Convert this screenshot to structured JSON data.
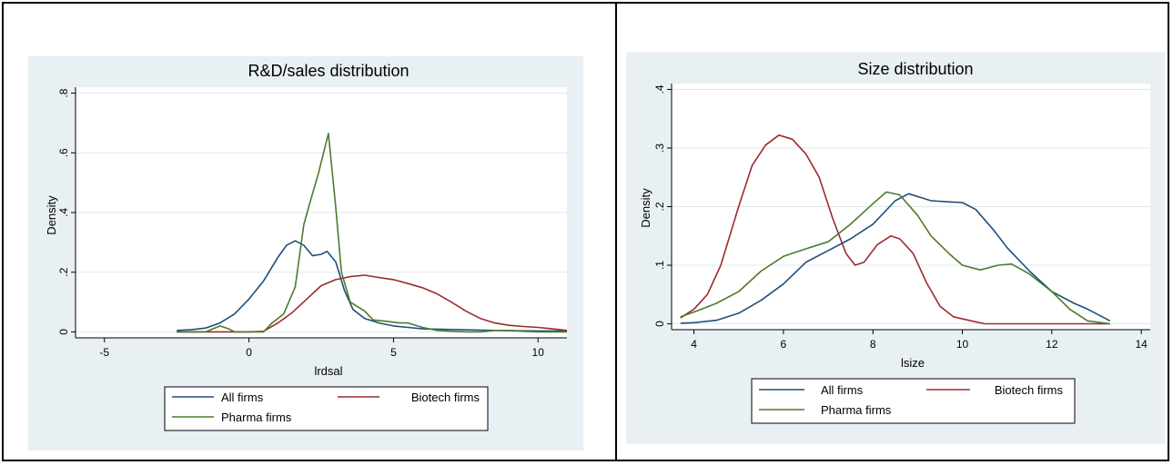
{
  "colors": {
    "all_firms": "#1c4f7c",
    "biotech_firms": "#9e2a2b",
    "pharma_firms": "#4e7a2c",
    "panel_bg": "#e8f0f3",
    "plot_bg": "#ffffff",
    "grid": "#dfe8ec"
  },
  "chart_data": [
    {
      "type": "line",
      "title": "R&D/sales distribution",
      "xlabel": "lrdsal",
      "ylabel": "Density",
      "xlim": [
        -6,
        11
      ],
      "ylim": [
        -0.02,
        0.82
      ],
      "xticks": [
        -5,
        0,
        5,
        10
      ],
      "xtick_labels": [
        "-5",
        "0",
        "5",
        "10"
      ],
      "yticks": [
        0,
        0.2,
        0.4,
        0.6,
        0.8
      ],
      "ytick_labels": [
        "0",
        ".2",
        ".4",
        ".6",
        ".8"
      ],
      "grid": true,
      "legend_position": "bottom",
      "series": [
        {
          "name": "All firms",
          "points": [
            [
              -2.5,
              0.005
            ],
            [
              -2,
              0.007
            ],
            [
              -1.5,
              0.013
            ],
            [
              -1,
              0.03
            ],
            [
              -0.5,
              0.06
            ],
            [
              0,
              0.11
            ],
            [
              0.5,
              0.17
            ],
            [
              1,
              0.25
            ],
            [
              1.3,
              0.29
            ],
            [
              1.6,
              0.305
            ],
            [
              1.9,
              0.29
            ],
            [
              2.2,
              0.255
            ],
            [
              2.5,
              0.26
            ],
            [
              2.7,
              0.27
            ],
            [
              3,
              0.235
            ],
            [
              3.3,
              0.14
            ],
            [
              3.6,
              0.075
            ],
            [
              4,
              0.045
            ],
            [
              4.5,
              0.03
            ],
            [
              5,
              0.02
            ],
            [
              5.5,
              0.015
            ],
            [
              6,
              0.01
            ],
            [
              7,
              0.008
            ],
            [
              8,
              0.006
            ],
            [
              9,
              0.004
            ],
            [
              10,
              0.003
            ],
            [
              11,
              0.003
            ]
          ]
        },
        {
          "name": "Biotech firms",
          "points": [
            [
              -2.5,
              0
            ],
            [
              0,
              0
            ],
            [
              0.5,
              0.002
            ],
            [
              1,
              0.03
            ],
            [
              1.5,
              0.065
            ],
            [
              2,
              0.11
            ],
            [
              2.5,
              0.155
            ],
            [
              3,
              0.175
            ],
            [
              3.5,
              0.185
            ],
            [
              4,
              0.19
            ],
            [
              4.5,
              0.182
            ],
            [
              5,
              0.175
            ],
            [
              5.5,
              0.162
            ],
            [
              6,
              0.148
            ],
            [
              6.5,
              0.128
            ],
            [
              7,
              0.1
            ],
            [
              7.5,
              0.07
            ],
            [
              8,
              0.045
            ],
            [
              8.5,
              0.03
            ],
            [
              9,
              0.022
            ],
            [
              9.5,
              0.018
            ],
            [
              10,
              0.015
            ],
            [
              10.5,
              0.01
            ],
            [
              11,
              0.005
            ]
          ]
        },
        {
          "name": "Pharma firms",
          "points": [
            [
              -2.5,
              0
            ],
            [
              -1.5,
              0
            ],
            [
              -1,
              0.02
            ],
            [
              -0.7,
              0.01
            ],
            [
              -0.5,
              0
            ],
            [
              0,
              0
            ],
            [
              0.5,
              0
            ],
            [
              0.8,
              0.03
            ],
            [
              1.2,
              0.06
            ],
            [
              1.6,
              0.15
            ],
            [
              1.9,
              0.36
            ],
            [
              2.1,
              0.43
            ],
            [
              2.4,
              0.53
            ],
            [
              2.75,
              0.665
            ],
            [
              3,
              0.42
            ],
            [
              3.2,
              0.2
            ],
            [
              3.5,
              0.1
            ],
            [
              4,
              0.07
            ],
            [
              4.3,
              0.04
            ],
            [
              4.8,
              0.035
            ],
            [
              5.2,
              0.03
            ],
            [
              5.5,
              0.03
            ],
            [
              6,
              0.015
            ],
            [
              6.5,
              0.005
            ],
            [
              7,
              0.002
            ],
            [
              7.5,
              0
            ],
            [
              8,
              0
            ],
            [
              8.5,
              0.005
            ],
            [
              9,
              0.005
            ],
            [
              9.5,
              0.002
            ],
            [
              10,
              0
            ],
            [
              11,
              0
            ]
          ]
        }
      ]
    },
    {
      "type": "line",
      "title": "Size distribution",
      "xlabel": "lsize",
      "ylabel": "Density",
      "xlim": [
        3.5,
        14.2
      ],
      "ylim": [
        -0.01,
        0.41
      ],
      "xticks": [
        4,
        6,
        8,
        10,
        12,
        14
      ],
      "xtick_labels": [
        "4",
        "6",
        "8",
        "10",
        "12",
        "14"
      ],
      "yticks": [
        0,
        0.1,
        0.2,
        0.3,
        0.4
      ],
      "ytick_labels": [
        "0",
        ".1",
        ".2",
        ".3",
        ".4"
      ],
      "grid": true,
      "legend_position": "bottom",
      "series": [
        {
          "name": "All firms",
          "points": [
            [
              3.7,
              0.001
            ],
            [
              4,
              0.002
            ],
            [
              4.5,
              0.006
            ],
            [
              5,
              0.018
            ],
            [
              5.5,
              0.04
            ],
            [
              6,
              0.068
            ],
            [
              6.5,
              0.105
            ],
            [
              7,
              0.125
            ],
            [
              7.5,
              0.145
            ],
            [
              8,
              0.17
            ],
            [
              8.5,
              0.21
            ],
            [
              8.8,
              0.222
            ],
            [
              9.3,
              0.21
            ],
            [
              9.7,
              0.208
            ],
            [
              10,
              0.207
            ],
            [
              10.3,
              0.195
            ],
            [
              10.7,
              0.16
            ],
            [
              11,
              0.13
            ],
            [
              11.5,
              0.09
            ],
            [
              12,
              0.055
            ],
            [
              12.5,
              0.035
            ],
            [
              12.8,
              0.025
            ],
            [
              13.3,
              0.005
            ]
          ]
        },
        {
          "name": "Biotech firms",
          "points": [
            [
              3.7,
              0.01
            ],
            [
              4,
              0.025
            ],
            [
              4.3,
              0.05
            ],
            [
              4.6,
              0.1
            ],
            [
              5,
              0.2
            ],
            [
              5.3,
              0.27
            ],
            [
              5.6,
              0.305
            ],
            [
              5.9,
              0.322
            ],
            [
              6.2,
              0.315
            ],
            [
              6.5,
              0.29
            ],
            [
              6.8,
              0.25
            ],
            [
              7.1,
              0.18
            ],
            [
              7.4,
              0.12
            ],
            [
              7.6,
              0.1
            ],
            [
              7.8,
              0.105
            ],
            [
              8.1,
              0.135
            ],
            [
              8.4,
              0.15
            ],
            [
              8.6,
              0.145
            ],
            [
              8.9,
              0.12
            ],
            [
              9.2,
              0.07
            ],
            [
              9.5,
              0.03
            ],
            [
              9.8,
              0.012
            ],
            [
              10.2,
              0.005
            ],
            [
              10.5,
              0
            ],
            [
              11,
              0
            ],
            [
              13.3,
              0
            ]
          ]
        },
        {
          "name": "Pharma firms",
          "points": [
            [
              3.7,
              0.012
            ],
            [
              4,
              0.02
            ],
            [
              4.5,
              0.035
            ],
            [
              5,
              0.055
            ],
            [
              5.5,
              0.09
            ],
            [
              6,
              0.115
            ],
            [
              6.5,
              0.128
            ],
            [
              7,
              0.14
            ],
            [
              7.5,
              0.17
            ],
            [
              8,
              0.205
            ],
            [
              8.3,
              0.225
            ],
            [
              8.6,
              0.22
            ],
            [
              9,
              0.185
            ],
            [
              9.3,
              0.15
            ],
            [
              9.7,
              0.12
            ],
            [
              10,
              0.1
            ],
            [
              10.4,
              0.092
            ],
            [
              10.8,
              0.1
            ],
            [
              11.1,
              0.102
            ],
            [
              11.5,
              0.085
            ],
            [
              12,
              0.055
            ],
            [
              12.4,
              0.025
            ],
            [
              12.8,
              0.005
            ],
            [
              13.3,
              0
            ]
          ]
        }
      ]
    }
  ]
}
